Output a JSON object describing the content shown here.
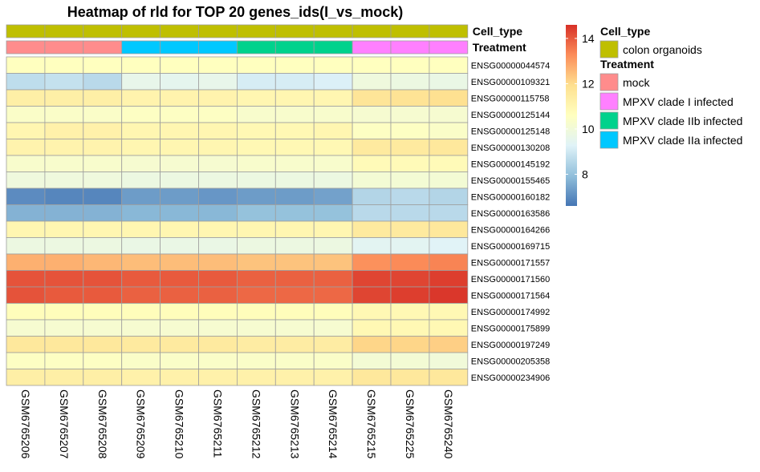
{
  "chart_data": {
    "type": "heatmap",
    "title": "Heatmap of rld for TOP 20 genes_ids(I_vs_mock)",
    "columns": [
      "GSM6765206",
      "GSM6765207",
      "GSM6765208",
      "GSM6765209",
      "GSM6765210",
      "GSM6765211",
      "GSM6765212",
      "GSM6765213",
      "GSM6765214",
      "GSM6765215",
      "GSM6765225",
      "GSM6765240"
    ],
    "rows": [
      "ENSG00000044574",
      "ENSG00000109321",
      "ENSG00000115758",
      "ENSG00000125144",
      "ENSG00000125148",
      "ENSG00000130208",
      "ENSG00000145192",
      "ENSG00000155465",
      "ENSG00000160182",
      "ENSG00000163586",
      "ENSG00000164266",
      "ENSG00000169715",
      "ENSG00000171557",
      "ENSG00000171560",
      "ENSG00000171564",
      "ENSG00000174992",
      "ENSG00000175899",
      "ENSG00000197249",
      "ENSG00000205358",
      "ENSG00000234906"
    ],
    "values": [
      [
        10.6,
        10.6,
        10.6,
        10.6,
        10.6,
        10.6,
        10.6,
        10.6,
        10.6,
        10.6,
        10.6,
        10.6
      ],
      [
        8.7,
        8.8,
        8.6,
        9.6,
        9.5,
        9.6,
        9.1,
        9.1,
        9.2,
        9.9,
        9.8,
        9.7
      ],
      [
        11.3,
        11.3,
        11.3,
        11.1,
        11.1,
        11.1,
        11.0,
        11.0,
        11.0,
        11.7,
        11.8,
        11.9
      ],
      [
        10.4,
        10.4,
        10.4,
        10.5,
        10.5,
        10.5,
        10.3,
        10.3,
        10.3,
        10.2,
        10.2,
        10.2
      ],
      [
        11.0,
        11.2,
        11.2,
        11.0,
        11.0,
        11.0,
        10.9,
        10.9,
        11.0,
        10.5,
        10.5,
        10.4
      ],
      [
        11.1,
        11.1,
        11.1,
        11.0,
        11.0,
        11.0,
        10.9,
        10.9,
        10.9,
        11.5,
        11.5,
        11.6
      ],
      [
        10.3,
        10.3,
        10.3,
        10.2,
        10.2,
        10.2,
        10.3,
        10.3,
        10.3,
        10.8,
        10.8,
        10.8
      ],
      [
        9.9,
        9.9,
        9.9,
        9.8,
        9.8,
        9.8,
        9.8,
        9.8,
        9.8,
        10.1,
        10.1,
        10.1
      ],
      [
        7.0,
        6.9,
        6.9,
        7.3,
        7.3,
        7.2,
        7.3,
        7.3,
        7.4,
        8.5,
        8.6,
        8.5
      ],
      [
        7.7,
        7.7,
        7.7,
        7.8,
        7.8,
        7.8,
        8.0,
        8.0,
        8.0,
        8.6,
        8.6,
        8.6
      ],
      [
        11.0,
        11.0,
        11.0,
        11.0,
        11.0,
        11.0,
        11.0,
        11.0,
        11.0,
        11.5,
        11.5,
        11.6
      ],
      [
        9.8,
        9.8,
        9.8,
        9.7,
        9.7,
        9.7,
        9.8,
        9.8,
        9.8,
        9.4,
        9.4,
        9.3
      ],
      [
        12.7,
        12.7,
        12.6,
        12.5,
        12.5,
        12.5,
        12.4,
        12.4,
        12.4,
        13.2,
        13.3,
        13.4
      ],
      [
        14.1,
        14.1,
        14.1,
        14.0,
        14.0,
        14.0,
        13.9,
        13.9,
        13.9,
        14.3,
        14.3,
        14.4
      ],
      [
        14.1,
        14.0,
        14.0,
        13.9,
        13.9,
        13.9,
        13.8,
        13.8,
        13.8,
        14.3,
        14.4,
        14.5
      ],
      [
        10.7,
        10.7,
        10.7,
        10.7,
        10.7,
        10.7,
        10.7,
        10.7,
        10.7,
        10.9,
        10.9,
        10.9
      ],
      [
        10.2,
        10.2,
        10.2,
        10.2,
        10.2,
        10.2,
        10.2,
        10.2,
        10.2,
        10.9,
        10.9,
        10.9
      ],
      [
        11.6,
        11.6,
        11.6,
        11.5,
        11.5,
        11.5,
        11.4,
        11.4,
        11.4,
        12.1,
        12.1,
        12.2
      ],
      [
        10.5,
        10.5,
        10.5,
        10.4,
        10.4,
        10.4,
        10.4,
        10.4,
        10.4,
        10.1,
        10.1,
        10.0
      ],
      [
        11.3,
        11.3,
        11.3,
        11.2,
        11.2,
        11.2,
        11.2,
        11.2,
        11.2,
        11.6,
        11.6,
        11.6
      ]
    ],
    "color_scale": {
      "colors": [
        "#4575b4",
        "#91bfdb",
        "#e0f3f8",
        "#ffffbf",
        "#fee090",
        "#fc8d59",
        "#d73027"
      ],
      "range": [
        6.6,
        14.6
      ],
      "ticks": [
        8,
        10,
        12,
        14
      ]
    },
    "annotations": [
      {
        "name": "Cell_type",
        "values": [
          "colon organoids",
          "colon organoids",
          "colon organoids",
          "colon organoids",
          "colon organoids",
          "colon organoids",
          "colon organoids",
          "colon organoids",
          "colon organoids",
          "colon organoids",
          "colon organoids",
          "colon organoids"
        ]
      },
      {
        "name": "Treatment",
        "values": [
          "mock",
          "mock",
          "mock",
          "MPXV clade IIa infected",
          "MPXV clade IIa infected",
          "MPXV clade IIa infected",
          "MPXV clade IIb infected",
          "MPXV clade IIb infected",
          "MPXV clade IIb infected",
          "MPXV clade I infected",
          "MPXV clade I infected",
          "MPXV clade I infected"
        ]
      }
    ],
    "legend": {
      "groups": [
        {
          "title": "Cell_type",
          "items": [
            {
              "label": "colon organoids",
              "color": "#bfbf00"
            }
          ]
        },
        {
          "title": "Treatment",
          "items": [
            {
              "label": "mock",
              "color": "#ff8c8c"
            },
            {
              "label": "MPXV clade I infected",
              "color": "#ff80ff"
            },
            {
              "label": "MPXV clade IIb infected",
              "color": "#00d28c"
            },
            {
              "label": "MPXV clade IIa infected",
              "color": "#00c8ff"
            }
          ]
        }
      ]
    }
  }
}
